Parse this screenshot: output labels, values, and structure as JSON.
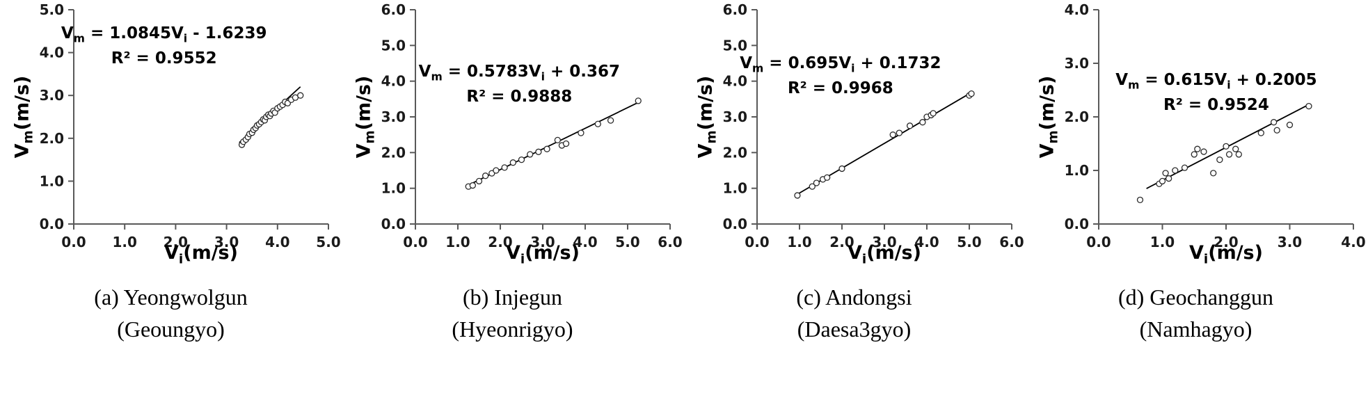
{
  "axis": {
    "x_main": "V",
    "x_sub": "i",
    "y_main": "V",
    "y_sub": "m",
    "unit": "(m/s)"
  },
  "chart_data": [
    {
      "type": "scatter",
      "caption_line1": "(a) Yeongwolgun",
      "caption_line2": "(Geoungyo)",
      "xlabel": "Vi(m/s)",
      "ylabel": "Vm(m/s)",
      "eq": {
        "p1": "V",
        "s1": "m",
        "p2": " = 1.0845V",
        "s2": "i",
        "p3": " - 1.6239"
      },
      "r2": "R² = 0.9552",
      "r_squared": 0.9552,
      "fit": {
        "slope": 1.0845,
        "intercept": -1.6239,
        "x_start": 3.25,
        "x_end": 4.45
      },
      "xlim": [
        0,
        5
      ],
      "ylim": [
        0,
        5
      ],
      "tick_step": 1,
      "grid": false,
      "eq_pos": {
        "cx_pct": 48,
        "top_pct": 8
      },
      "points": [
        [
          3.3,
          1.85
        ],
        [
          3.33,
          1.92
        ],
        [
          3.38,
          1.97
        ],
        [
          3.42,
          2.03
        ],
        [
          3.45,
          2.1
        ],
        [
          3.5,
          2.13
        ],
        [
          3.53,
          2.2
        ],
        [
          3.57,
          2.24
        ],
        [
          3.6,
          2.3
        ],
        [
          3.64,
          2.33
        ],
        [
          3.68,
          2.38
        ],
        [
          3.72,
          2.44
        ],
        [
          3.75,
          2.42
        ],
        [
          3.78,
          2.5
        ],
        [
          3.82,
          2.55
        ],
        [
          3.85,
          2.52
        ],
        [
          3.88,
          2.58
        ],
        [
          3.92,
          2.64
        ],
        [
          3.95,
          2.6
        ],
        [
          4.0,
          2.7
        ],
        [
          4.05,
          2.74
        ],
        [
          4.1,
          2.78
        ],
        [
          4.15,
          2.85
        ],
        [
          4.2,
          2.82
        ],
        [
          4.27,
          2.9
        ],
        [
          4.35,
          2.95
        ],
        [
          4.45,
          3.0
        ]
      ]
    },
    {
      "type": "scatter",
      "caption_line1": "(b) Injegun",
      "caption_line2": "(Hyeonrigyo)",
      "xlabel": "Vi(m/s)",
      "ylabel": "Vm(m/s)",
      "eq": {
        "p1": "V",
        "s1": "m",
        "p2": " = 0.5783V",
        "s2": "i",
        "p3": " + 0.367"
      },
      "r2": "R² = 0.9888",
      "r_squared": 0.9888,
      "fit": {
        "slope": 0.5783,
        "intercept": 0.367,
        "x_start": 1.2,
        "x_end": 5.3
      },
      "xlim": [
        0,
        6
      ],
      "ylim": [
        0,
        6
      ],
      "tick_step": 1,
      "grid": false,
      "eq_pos": {
        "cx_pct": 52,
        "top_pct": 22
      },
      "points": [
        [
          1.25,
          1.05
        ],
        [
          1.35,
          1.08
        ],
        [
          1.5,
          1.2
        ],
        [
          1.65,
          1.35
        ],
        [
          1.8,
          1.42
        ],
        [
          1.9,
          1.5
        ],
        [
          2.1,
          1.58
        ],
        [
          2.3,
          1.72
        ],
        [
          2.5,
          1.8
        ],
        [
          2.7,
          1.95
        ],
        [
          2.9,
          2.02
        ],
        [
          3.1,
          2.1
        ],
        [
          3.35,
          2.35
        ],
        [
          3.45,
          2.2
        ],
        [
          3.55,
          2.25
        ],
        [
          3.9,
          2.55
        ],
        [
          4.3,
          2.8
        ],
        [
          4.6,
          2.9
        ],
        [
          5.25,
          3.45
        ]
      ]
    },
    {
      "type": "scatter",
      "caption_line1": "(c) Andongsi",
      "caption_line2": "(Daesa3gyo)",
      "xlabel": "Vi(m/s)",
      "ylabel": "Vm(m/s)",
      "eq": {
        "p1": "V",
        "s1": "m",
        "p2": " = 0.695V",
        "s2": "i",
        "p3": " + 0.1732"
      },
      "r2": "R² = 0.9968",
      "r_squared": 0.9968,
      "fit": {
        "slope": 0.695,
        "intercept": 0.1732,
        "x_start": 0.95,
        "x_end": 5.05
      },
      "xlim": [
        0,
        6
      ],
      "ylim": [
        0,
        6
      ],
      "tick_step": 1,
      "grid": false,
      "eq_pos": {
        "cx_pct": 46,
        "top_pct": 19
      },
      "points": [
        [
          0.95,
          0.8
        ],
        [
          1.3,
          1.05
        ],
        [
          1.4,
          1.15
        ],
        [
          1.55,
          1.25
        ],
        [
          1.65,
          1.3
        ],
        [
          2.0,
          1.55
        ],
        [
          3.2,
          2.5
        ],
        [
          3.35,
          2.55
        ],
        [
          3.6,
          2.75
        ],
        [
          3.9,
          2.85
        ],
        [
          4.0,
          3.0
        ],
        [
          4.1,
          3.05
        ],
        [
          4.15,
          3.1
        ],
        [
          5.0,
          3.6
        ],
        [
          5.05,
          3.65
        ]
      ]
    },
    {
      "type": "scatter",
      "caption_line1": "(d) Geochanggun",
      "caption_line2": "(Namhagyo)",
      "xlabel": "Vi(m/s)",
      "ylabel": "Vm(m/s)",
      "eq": {
        "p1": "V",
        "s1": "m",
        "p2": " = 0.615V",
        "s2": "i",
        "p3": " + 0.2005"
      },
      "r2": "R² = 0.9524",
      "r_squared": 0.9524,
      "fit": {
        "slope": 0.615,
        "intercept": 0.2005,
        "x_start": 0.75,
        "x_end": 3.3
      },
      "xlim": [
        0,
        4
      ],
      "ylim": [
        0,
        4
      ],
      "tick_step": 1,
      "grid": false,
      "eq_pos": {
        "cx_pct": 56,
        "top_pct": 25
      },
      "points": [
        [
          0.65,
          0.45
        ],
        [
          0.95,
          0.75
        ],
        [
          1.0,
          0.8
        ],
        [
          1.05,
          0.95
        ],
        [
          1.1,
          0.85
        ],
        [
          1.2,
          1.0
        ],
        [
          1.35,
          1.05
        ],
        [
          1.5,
          1.3
        ],
        [
          1.55,
          1.4
        ],
        [
          1.65,
          1.35
        ],
        [
          1.8,
          0.95
        ],
        [
          1.9,
          1.2
        ],
        [
          2.0,
          1.45
        ],
        [
          2.05,
          1.3
        ],
        [
          2.15,
          1.4
        ],
        [
          2.2,
          1.3
        ],
        [
          2.55,
          1.7
        ],
        [
          2.75,
          1.9
        ],
        [
          2.8,
          1.75
        ],
        [
          3.0,
          1.85
        ],
        [
          3.3,
          2.2
        ]
      ]
    }
  ]
}
